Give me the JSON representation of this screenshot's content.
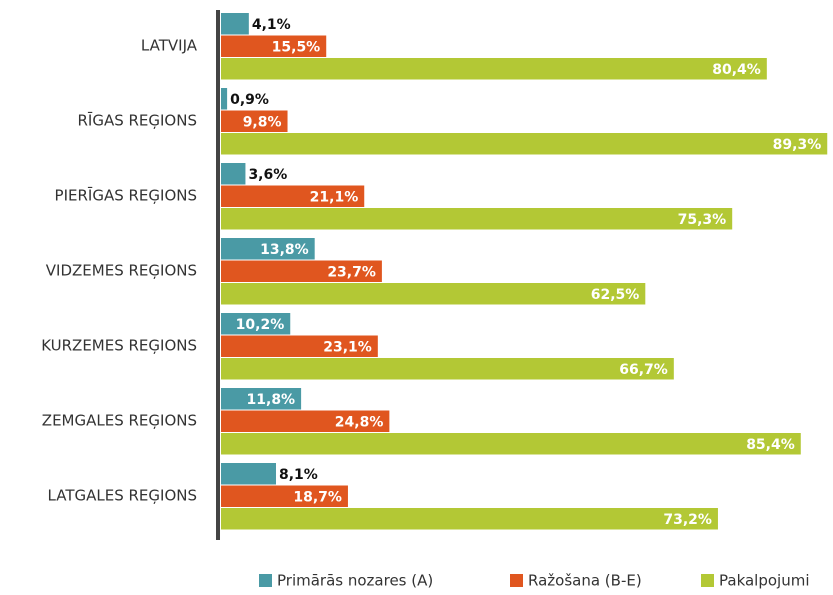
{
  "chart_data": {
    "type": "bar",
    "orientation": "horizontal",
    "categories": [
      "LATVIJA",
      "RĪGAS REĢIONS",
      "PIERĪGAS REĢIONS",
      "VIDZEMES REĢIONS",
      "KURZEMES REĢIONS",
      "ZEMGALES REĢIONS",
      "LATGALES REĢIONS"
    ],
    "series": [
      {
        "name": "Primārās nozares (A)",
        "color": "#4a9aa5",
        "values": [
          4.1,
          0.9,
          3.6,
          13.8,
          10.2,
          11.8,
          8.1
        ],
        "value_labels": [
          "4,1%",
          "0,9%",
          "3,6%",
          "13,8%",
          "10,2%",
          "11,8%",
          "8,1%"
        ]
      },
      {
        "name": "Ražošana (B-E)",
        "color": "#e0561f",
        "values": [
          15.5,
          9.8,
          21.1,
          23.7,
          23.1,
          24.8,
          18.7
        ],
        "value_labels": [
          "15,5%",
          "9,8%",
          "21,1%",
          "23,7%",
          "23,1%",
          "24,8%",
          "18,7%"
        ]
      },
      {
        "name": "Pakalpojumi",
        "color": "#b3c835",
        "values": [
          80.4,
          89.3,
          75.3,
          62.5,
          66.7,
          85.4,
          73.2
        ],
        "value_labels": [
          "80,4%",
          "89,3%",
          "75,3%",
          "62,5%",
          "66,7%",
          "85,4%",
          "73,2%"
        ]
      }
    ],
    "xlim": [
      0,
      90
    ],
    "legend": "bottom"
  }
}
